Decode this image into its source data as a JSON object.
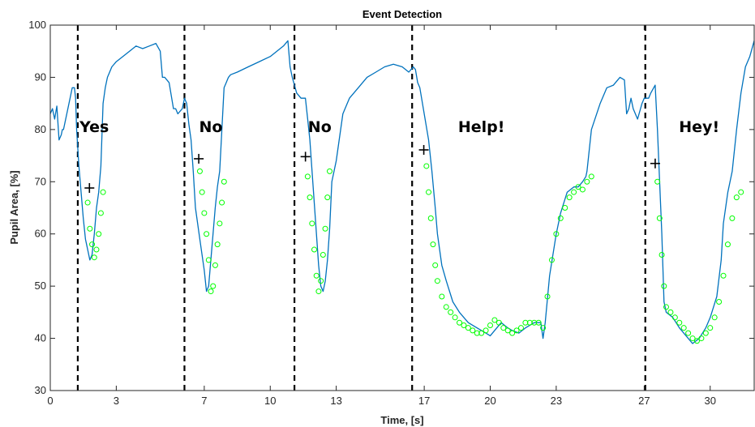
{
  "chart_data": {
    "type": "line",
    "title": "Event Detection",
    "xlabel": "Time, [s]",
    "ylabel": "Pupil Area, [%]",
    "xlim": [
      0,
      32
    ],
    "ylim": [
      30,
      100
    ],
    "xticks": [
      0,
      3,
      7,
      10,
      13,
      17,
      20,
      23,
      27,
      30
    ],
    "xtick_labels": [
      "0",
      "3",
      "7",
      "10",
      "13",
      "17",
      "20",
      "23",
      "27",
      "30"
    ],
    "yticks": [
      30,
      40,
      50,
      60,
      70,
      80,
      90,
      100
    ],
    "ytick_labels": [
      "30",
      "40",
      "50",
      "60",
      "70",
      "80",
      "90",
      "100"
    ],
    "grid": false,
    "colors": {
      "line": "#0072BD",
      "markers": "#00FF00",
      "onset": "#000000",
      "boundary": "#000000"
    },
    "series": [
      {
        "x": [
          0,
          0.1,
          0.2,
          0.3,
          0.4,
          0.5,
          0.55,
          0.6,
          0.7,
          0.8,
          0.9,
          1.0,
          1.1,
          1.15,
          1.2,
          1.3,
          1.4,
          1.5,
          1.6,
          1.7,
          1.8,
          1.9,
          2.0,
          2.1,
          2.2,
          2.3,
          2.4,
          2.5,
          2.6,
          2.7,
          2.8,
          3.0,
          3.3,
          3.6,
          3.9,
          4.2,
          4.5,
          4.8,
          5.0,
          5.1,
          5.2,
          5.4,
          5.6,
          5.7,
          5.8,
          6.0,
          6.1,
          6.2,
          6.3,
          6.4,
          6.5,
          6.6,
          6.8,
          7.0,
          7.1,
          7.2,
          7.3,
          7.4,
          7.5,
          7.6,
          7.7,
          7.8,
          7.9,
          8.0,
          8.1,
          8.2,
          8.5,
          9.0,
          9.5,
          10.0,
          10.3,
          10.6,
          10.8,
          10.9,
          11.0,
          11.2,
          11.4,
          11.6,
          11.7,
          11.8,
          11.9,
          12.0,
          12.1,
          12.2,
          12.3,
          12.4,
          12.5,
          12.6,
          12.7,
          12.8,
          13.0,
          13.3,
          13.6,
          14.0,
          14.4,
          14.8,
          15.2,
          15.6,
          16.0,
          16.3,
          16.5,
          16.6,
          16.7,
          16.8,
          17.0,
          17.2,
          17.35,
          17.5,
          17.6,
          17.8,
          18.0,
          18.3,
          18.6,
          19.0,
          19.4,
          19.8,
          20.0,
          20.3,
          20.5,
          20.8,
          21.0,
          21.3,
          21.6,
          22.0,
          22.3,
          22.4,
          22.5,
          22.7,
          23.0,
          23.2,
          23.5,
          23.8,
          24.0,
          24.2,
          24.35,
          24.4,
          24.6,
          25.0,
          25.3,
          25.6,
          25.9,
          26.1,
          26.2,
          26.3,
          26.4,
          26.5,
          26.7,
          26.9,
          27.0,
          27.2,
          27.3,
          27.5,
          27.6,
          27.7,
          27.8,
          27.9,
          28.0,
          28.3,
          28.6,
          29.0,
          29.2,
          29.5,
          29.8,
          30.0,
          30.3,
          30.5,
          30.6,
          30.8,
          31.0,
          31.2,
          31.4,
          31.6,
          31.8,
          32.0
        ],
        "y": [
          83,
          84,
          82,
          84.5,
          78,
          79,
          80,
          80,
          82,
          84,
          86,
          88,
          88,
          86,
          80,
          73,
          68,
          63,
          59,
          57,
          55,
          56,
          60,
          65,
          68,
          73,
          85,
          88,
          90,
          91,
          92,
          93,
          94,
          95,
          96,
          95.5,
          96,
          96.5,
          95,
          90,
          90,
          89,
          84,
          84,
          83,
          84,
          86,
          85,
          81,
          78,
          72,
          65,
          59,
          53,
          49,
          50,
          55,
          60,
          65,
          69,
          72,
          80,
          88,
          89,
          90,
          90.5,
          91,
          92,
          93,
          94,
          95,
          96,
          97,
          92,
          90,
          87,
          86,
          86,
          82,
          78,
          72,
          66,
          60,
          54,
          50,
          49,
          51,
          55,
          61,
          70,
          74,
          83,
          86,
          88,
          90,
          91,
          92,
          92.5,
          92,
          91,
          92,
          91.5,
          89,
          88,
          83,
          78,
          72,
          65,
          60,
          54,
          51,
          47,
          45,
          43,
          42,
          41,
          40.5,
          42,
          43,
          42,
          41.5,
          41,
          42,
          43,
          43,
          40,
          43,
          52,
          60,
          64,
          68,
          69,
          69,
          70,
          71,
          72,
          80,
          85,
          88,
          88.5,
          90,
          89.5,
          83,
          84,
          86,
          84,
          82,
          85,
          86,
          86,
          87,
          88.5,
          80,
          70,
          60,
          47,
          45,
          44,
          42,
          40,
          39,
          40,
          42,
          44,
          48,
          55,
          62,
          68,
          72,
          80,
          87,
          92,
          94,
          97
        ]
      }
    ],
    "event_boundaries": [
      1.25,
      6.1,
      11.1,
      16.45,
      27.05
    ],
    "onset_markers": [
      {
        "x": 1.78,
        "y": 68.8
      },
      {
        "x": 6.75,
        "y": 74.4
      },
      {
        "x": 11.6,
        "y": 74.8
      },
      {
        "x": 16.98,
        "y": 76.1
      },
      {
        "x": 27.5,
        "y": 73.5
      }
    ],
    "detected_segments": [
      {
        "x": [
          1.7,
          1.8,
          1.9,
          2.0,
          2.1,
          2.2,
          2.3,
          2.4
        ],
        "y": [
          66,
          61,
          58,
          55.5,
          57,
          60,
          64,
          68
        ]
      },
      {
        "x": [
          6.8,
          6.9,
          7.0,
          7.1,
          7.2,
          7.3,
          7.4,
          7.5,
          7.6,
          7.7,
          7.8,
          7.9
        ],
        "y": [
          72,
          68,
          64,
          60,
          55,
          49,
          50,
          54,
          58,
          62,
          66,
          70
        ]
      },
      {
        "x": [
          11.7,
          11.8,
          11.9,
          12.0,
          12.1,
          12.2,
          12.3,
          12.4,
          12.5,
          12.6,
          12.7
        ],
        "y": [
          71,
          67,
          62,
          57,
          52,
          49,
          51,
          56,
          61,
          67,
          72
        ]
      },
      {
        "x": [
          17.1,
          17.2,
          17.3,
          17.4,
          17.5,
          17.6,
          17.8,
          18.0,
          18.2,
          18.4,
          18.6,
          18.8,
          19.0,
          19.2,
          19.4,
          19.6,
          19.8,
          20.0,
          20.2,
          20.4,
          20.6,
          20.8,
          21.0,
          21.2,
          21.4,
          21.6,
          21.8,
          22.0,
          22.2,
          22.4,
          22.6,
          22.8,
          23.0,
          23.2,
          23.4,
          23.6,
          23.8,
          24.0,
          24.2,
          24.4,
          24.6
        ],
        "y": [
          73,
          68,
          63,
          58,
          54,
          51,
          48,
          46,
          45,
          44,
          43,
          42.5,
          42,
          41.5,
          41,
          41,
          41.5,
          42.5,
          43.5,
          43,
          42,
          41.5,
          41,
          41.5,
          42,
          43,
          43,
          43,
          43,
          42,
          48,
          55,
          60,
          63,
          65,
          67,
          68,
          69,
          68.5,
          70,
          71
        ]
      },
      {
        "x": [
          27.6,
          27.7,
          27.8,
          27.9,
          28.0,
          28.2,
          28.4,
          28.6,
          28.8,
          29.0,
          29.2,
          29.4,
          29.6,
          29.8,
          30.0,
          30.2,
          30.4,
          30.6,
          30.8,
          31.0,
          31.2,
          31.4
        ],
        "y": [
          70,
          63,
          56,
          50,
          46,
          45,
          44,
          43,
          42,
          41,
          40,
          39.5,
          40,
          41,
          42,
          44,
          47,
          52,
          58,
          63,
          67,
          68
        ]
      }
    ],
    "annotations": [
      {
        "text": "Yes",
        "x": 2.0,
        "y": 79.5
      },
      {
        "text": "No",
        "x": 7.3,
        "y": 79.5
      },
      {
        "text": "No",
        "x": 12.25,
        "y": 79.5
      },
      {
        "text": "Help!",
        "x": 19.6,
        "y": 79.5
      },
      {
        "text": "Hey!",
        "x": 29.5,
        "y": 79.5
      }
    ]
  }
}
